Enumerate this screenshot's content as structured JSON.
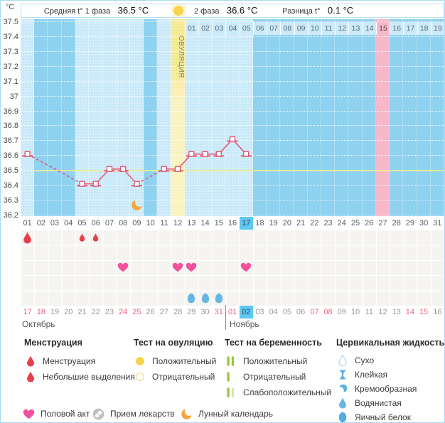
{
  "colors": {
    "chart_bg": "#8ed2f0",
    "data_column": "#c8e9f9",
    "ovulation_column": "#f3e88e",
    "predicted_period_column": "#f7b8c9",
    "temperature_line": "#e8536f",
    "coverline": "#eeeb85",
    "current_day_highlight": "#5ec8ef",
    "menstruation_red": "#e7404d",
    "intercourse_pink": "#f2509c",
    "cervical_blue": "#66b6e6",
    "moon_orange": "#f4a63b",
    "test_green": "#9cc43f",
    "test_green_weak": "#d6e5ae",
    "ovulation_test_yellow": "#f8d44c",
    "weekend_date": "#f55f85"
  },
  "header": {
    "avg1_label": "Средняя t° 1 фаза",
    "avg1_value": "36.5 °C",
    "phase2_label": "2 фаза",
    "phase2_value": "36.6 °C",
    "diff_label": "Разница t°",
    "diff_value": "0.1 °C",
    "ovulation_label": "ОВУЛЯЦИЯ"
  },
  "chart_data": {
    "type": "line",
    "title": "Basal body temperature cycle chart",
    "ylabel": "°C",
    "ylim": [
      36.2,
      37.5
    ],
    "ytick_step": 0.1,
    "yticks": [
      "37.5",
      "37.4",
      "37.3",
      "37.2",
      "37.1",
      "37",
      "36.9",
      "36.8",
      "36.7",
      "36.6",
      "36.5",
      "36.4",
      "36.3",
      "36.2"
    ],
    "gridlines": "dotted-white-horizontal",
    "x_total_days": 31,
    "points": [
      {
        "day": 1,
        "temp": 36.6
      },
      {
        "day": 5,
        "temp": 36.4
      },
      {
        "day": 6,
        "temp": 36.4
      },
      {
        "day": 7,
        "temp": 36.5
      },
      {
        "day": 8,
        "temp": 36.5
      },
      {
        "day": 9,
        "temp": 36.4
      },
      {
        "day": 11,
        "temp": 36.5
      },
      {
        "day": 12,
        "temp": 36.5
      },
      {
        "day": 13,
        "temp": 36.6
      },
      {
        "day": 14,
        "temp": 36.6
      },
      {
        "day": 15,
        "temp": 36.6
      },
      {
        "day": 16,
        "temp": 36.7
      },
      {
        "day": 17,
        "temp": 36.6
      },
      {
        "note": "gaps between non-consecutive days are drawn dashed"
      }
    ],
    "coverline_temp": 36.5,
    "ovulation_day": 12,
    "current_cycle_day": 17,
    "predicted_period_day": 27,
    "moon_symbol_day": 9,
    "post_ovulation_labels": [
      "01",
      "02",
      "03",
      "04",
      "05",
      "06",
      "07",
      "08",
      "09",
      "10",
      "11",
      "12",
      "13",
      "14",
      "15",
      "16",
      "17",
      "18",
      "19"
    ],
    "post_ovulation_highlight": "15"
  },
  "cycle_days": [
    "01",
    "02",
    "03",
    "04",
    "05",
    "06",
    "07",
    "08",
    "09",
    "10",
    "11",
    "12",
    "13",
    "14",
    "15",
    "16",
    "17",
    "18",
    "19",
    "20",
    "21",
    "22",
    "23",
    "24",
    "25",
    "26",
    "27",
    "28",
    "29",
    "30",
    "31"
  ],
  "symbols": {
    "menstruation": [
      {
        "day": 1,
        "intensity": "heavy"
      },
      {
        "day": 5,
        "intensity": "spotting"
      },
      {
        "day": 6,
        "intensity": "spotting"
      }
    ],
    "intercourse_days": [
      8,
      12,
      13,
      17
    ],
    "cervical_fluid": [
      {
        "day": 13,
        "type": "яичный белок"
      },
      {
        "day": 14,
        "type": "яичный белок"
      },
      {
        "day": 15,
        "type": "яичный белок"
      }
    ]
  },
  "calendar": {
    "months": [
      {
        "name": "Октябрь",
        "start_cycle_day": 1,
        "dates": [
          {
            "d": "17",
            "we": true
          },
          {
            "d": "18",
            "we": true
          },
          {
            "d": "19"
          },
          {
            "d": "20"
          },
          {
            "d": "21"
          },
          {
            "d": "22"
          },
          {
            "d": "23"
          },
          {
            "d": "24",
            "we": true
          },
          {
            "d": "25",
            "we": true
          },
          {
            "d": "26"
          },
          {
            "d": "27"
          },
          {
            "d": "28"
          },
          {
            "d": "29"
          },
          {
            "d": "30"
          },
          {
            "d": "31",
            "we": true
          }
        ]
      },
      {
        "name": "Ноябрь",
        "start_cycle_day": 16,
        "dates": [
          {
            "d": "01",
            "we": true
          },
          {
            "d": "02",
            "current": true
          },
          {
            "d": "03"
          },
          {
            "d": "04"
          },
          {
            "d": "05"
          },
          {
            "d": "06"
          },
          {
            "d": "07",
            "we": true
          },
          {
            "d": "08",
            "we": true
          },
          {
            "d": "09"
          },
          {
            "d": "10"
          },
          {
            "d": "11"
          },
          {
            "d": "12"
          },
          {
            "d": "13"
          },
          {
            "d": "14",
            "we": true
          },
          {
            "d": "15",
            "we": true
          },
          {
            "d": "16"
          }
        ]
      }
    ]
  },
  "legend": {
    "sections": [
      {
        "title": "Менструация",
        "items": [
          {
            "icon": "drop-large",
            "label": "Менструация"
          },
          {
            "icon": "drop-small",
            "label": "Небольшие выделения"
          }
        ]
      },
      {
        "title": "Тест на овуляцию",
        "items": [
          {
            "icon": "ot-positive",
            "label": "Положительный"
          },
          {
            "icon": "ot-negative",
            "label": "Отрицательный"
          }
        ]
      },
      {
        "title": "Тест на беременность",
        "items": [
          {
            "icon": "hpt-positive",
            "label": "Положительный"
          },
          {
            "icon": "hpt-negative",
            "label": "Отрицательный"
          },
          {
            "icon": "hpt-weak",
            "label": "Слабоположительный"
          }
        ]
      },
      {
        "title": "Цервикальная жидкость",
        "items": [
          {
            "icon": "cf-dry",
            "label": "Сухо"
          },
          {
            "icon": "cf-sticky",
            "label": "Клейкая"
          },
          {
            "icon": "cf-creamy",
            "label": "Кремообразная"
          },
          {
            "icon": "cf-watery",
            "label": "Водянистая"
          },
          {
            "icon": "cf-eggwhite",
            "label": "Яичный белок"
          }
        ]
      }
    ],
    "bottom_items": [
      {
        "icon": "heart",
        "label": "Половой акт"
      },
      {
        "icon": "pill",
        "label": "Прием лекарств"
      },
      {
        "icon": "moon",
        "label": "Лунный календарь"
      }
    ]
  }
}
